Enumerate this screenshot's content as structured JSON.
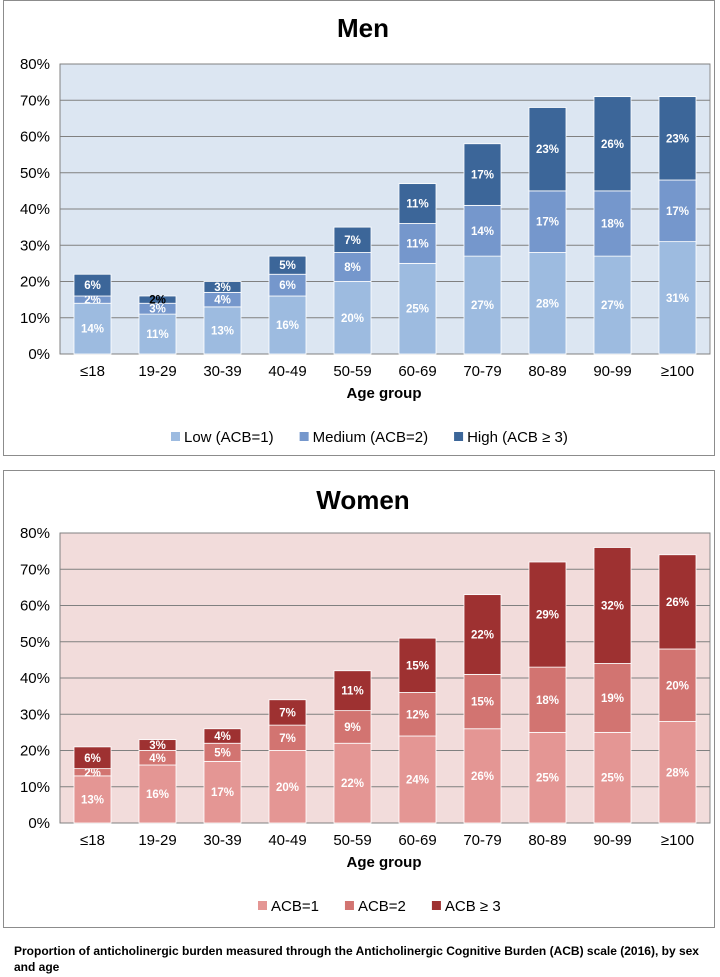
{
  "chart_data": [
    {
      "type": "bar",
      "stacked": true,
      "title": "Men",
      "xlabel": "Age group",
      "ylabel": "",
      "ylim": [
        0,
        80
      ],
      "yticks": [
        "0%",
        "10%",
        "20%",
        "30%",
        "40%",
        "50%",
        "60%",
        "70%",
        "80%"
      ],
      "categories": [
        "≤18",
        "19-29",
        "30-39",
        "40-49",
        "50-59",
        "60-69",
        "70-79",
        "80-89",
        "90-99",
        "≥100"
      ],
      "legend_position": "bottom",
      "series": [
        {
          "name": "Low (ACB=1)",
          "color": "#9dbbe0",
          "values": [
            14,
            11,
            13,
            16,
            20,
            25,
            27,
            28,
            27,
            31
          ],
          "labels": [
            "14%",
            "11%",
            "13%",
            "16%",
            "20%",
            "25%",
            "27%",
            "28%",
            "27%",
            "31%"
          ]
        },
        {
          "name": "Medium (ACB=2)",
          "color": "#7597cc",
          "values": [
            2,
            3,
            4,
            6,
            8,
            11,
            14,
            17,
            18,
            17
          ],
          "labels": [
            "2%",
            "3%",
            "4%",
            "6%",
            "8%",
            "11%",
            "14%",
            "17%",
            "18%",
            "17%"
          ]
        },
        {
          "name": "High (ACB ≥ 3)",
          "color": "#3c6699",
          "values": [
            6,
            2,
            3,
            5,
            7,
            11,
            17,
            23,
            26,
            23
          ],
          "labels": [
            "6%",
            "2%",
            "3%",
            "5%",
            "7%",
            "11%",
            "17%",
            "23%",
            "26%",
            "23%"
          ]
        }
      ]
    },
    {
      "type": "bar",
      "stacked": true,
      "title": "Women",
      "xlabel": "Age group",
      "ylabel": "",
      "ylim": [
        0,
        80
      ],
      "yticks": [
        "0%",
        "10%",
        "20%",
        "30%",
        "40%",
        "50%",
        "60%",
        "70%",
        "80%"
      ],
      "categories": [
        "≤18",
        "19-29",
        "30-39",
        "40-49",
        "50-59",
        "60-69",
        "70-79",
        "80-89",
        "90-99",
        "≥100"
      ],
      "legend_position": "bottom",
      "series": [
        {
          "name": "ACB=1",
          "color": "#e49694",
          "values": [
            13,
            16,
            17,
            20,
            22,
            24,
            26,
            25,
            25,
            28
          ],
          "labels": [
            "13%",
            "16%",
            "17%",
            "20%",
            "22%",
            "24%",
            "26%",
            "25%",
            "25%",
            "28%"
          ]
        },
        {
          "name": "ACB=2",
          "color": "#d27471",
          "values": [
            2,
            4,
            5,
            7,
            9,
            12,
            15,
            18,
            19,
            20
          ],
          "labels": [
            "2%",
            "4%",
            "5%",
            "7%",
            "9%",
            "12%",
            "15%",
            "18%",
            "19%",
            "20%"
          ]
        },
        {
          "name": "ACB ≥ 3",
          "color": "#9e3131",
          "values": [
            6,
            3,
            4,
            7,
            11,
            15,
            22,
            29,
            32,
            26
          ],
          "labels": [
            "6%",
            "3%",
            "4%",
            "7%",
            "11%",
            "15%",
            "22%",
            "29%",
            "32%",
            "26%"
          ]
        }
      ]
    }
  ],
  "styles": {
    "men_plot_bg": "#dce6f2",
    "women_plot_bg": "#f2dcdb",
    "gridline": "#808080"
  },
  "caption": "Proportion of anticholinergic burden measured through the Anticholinergic Cognitive Burden (ACB) scale (2016), by sex and age"
}
